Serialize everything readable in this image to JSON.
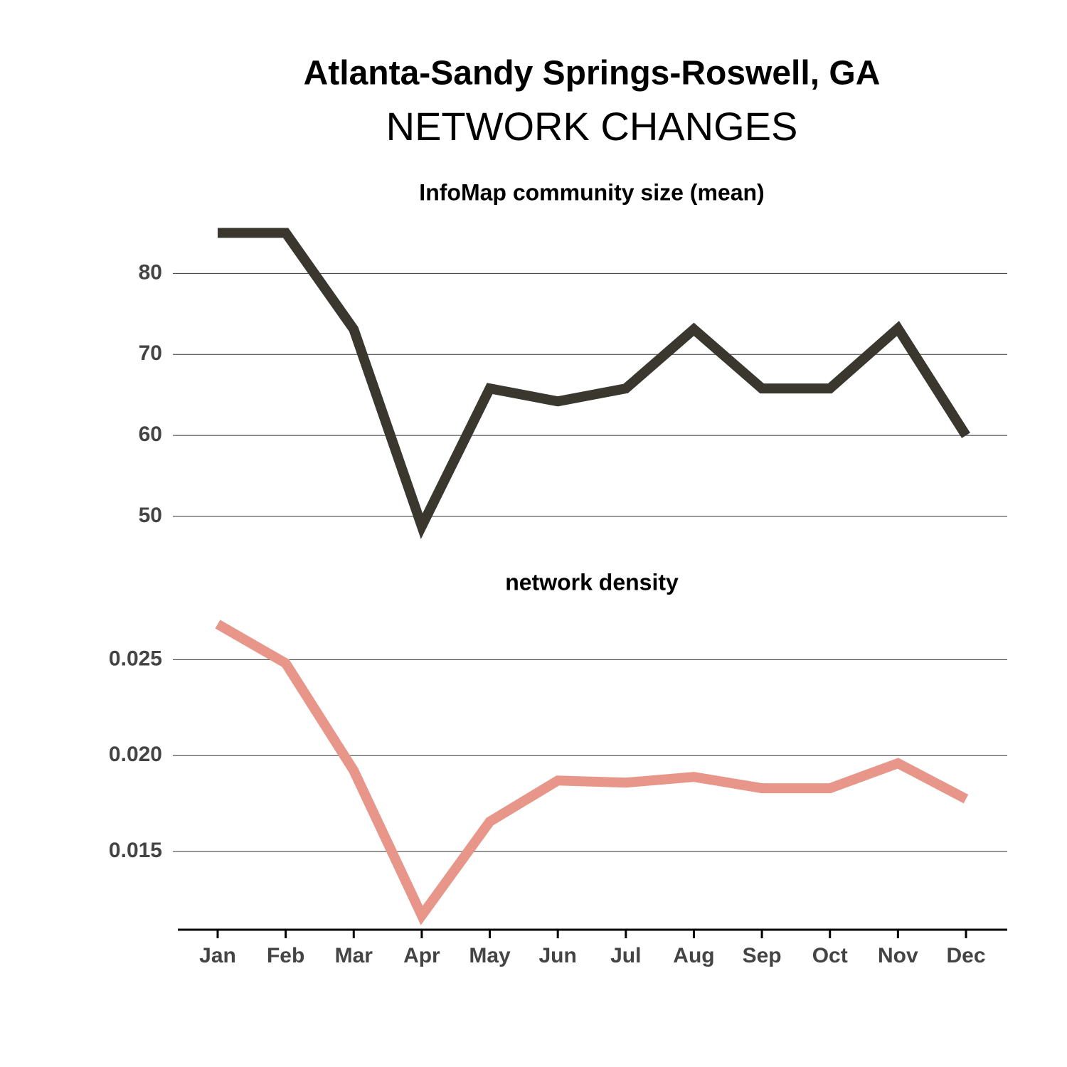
{
  "title": "Atlanta-Sandy Springs-Roswell, GA",
  "subtitle": "NETWORK CHANGES",
  "chart_data": [
    {
      "type": "line",
      "title": "InfoMap community size (mean)",
      "series": [
        {
          "color": "#3a372f",
          "values": [
            85,
            85,
            73.1,
            48.8,
            65.8,
            64.2,
            65.8,
            73.1,
            65.8,
            65.8,
            73.2,
            60
          ]
        }
      ],
      "ylim": [
        47.5,
        86
      ],
      "yticks": [
        50,
        60,
        70,
        80
      ],
      "grid": true
    },
    {
      "type": "line",
      "title": "network density",
      "categories": [
        "Jan",
        "Feb",
        "Mar",
        "Apr",
        "May",
        "Jun",
        "Jul",
        "Aug",
        "Sep",
        "Oct",
        "Nov",
        "Dec"
      ],
      "series": [
        {
          "color": "#e8968a",
          "values": [
            0.02685,
            0.02481,
            0.01922,
            0.01167,
            0.01656,
            0.0187,
            0.01859,
            0.01889,
            0.0183,
            0.0183,
            0.0196,
            0.01774
          ]
        }
      ],
      "ylim": [
        0.011,
        0.0272
      ],
      "yticks": [
        0.015,
        {
          "value": 0.02,
          "label": "0.020"
        },
        0.025
      ],
      "grid": true
    }
  ]
}
